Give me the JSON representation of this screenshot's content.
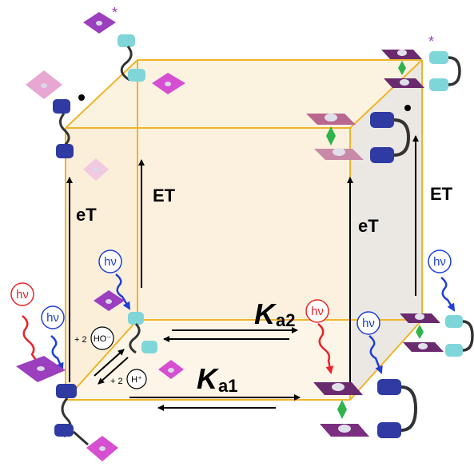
{
  "labels": {
    "et": "ET",
    "e_t": "eT",
    "hv": "hν",
    "ka_main": "K",
    "ka2_sub": "a2",
    "ka1_sub": "a1",
    "plus2": "+ 2",
    "hydroxide": "HO⁻",
    "proton": "H⁺",
    "excited": "*",
    "radical": "•"
  },
  "colors": {
    "cube_edge": "#f0b429",
    "cube_face": "#fbf1de",
    "cube_face_right": "#ece9e2",
    "red": "#e8262b",
    "blue": "#1f3fd6",
    "purple": "#9b3fbf",
    "magenta": "#d64fd1",
    "pink": "#e8a7d2",
    "cyan": "#7fd6d8",
    "navy": "#2f3aa3",
    "dark_purple": "#6a2a6e",
    "green": "#2fb34a"
  }
}
